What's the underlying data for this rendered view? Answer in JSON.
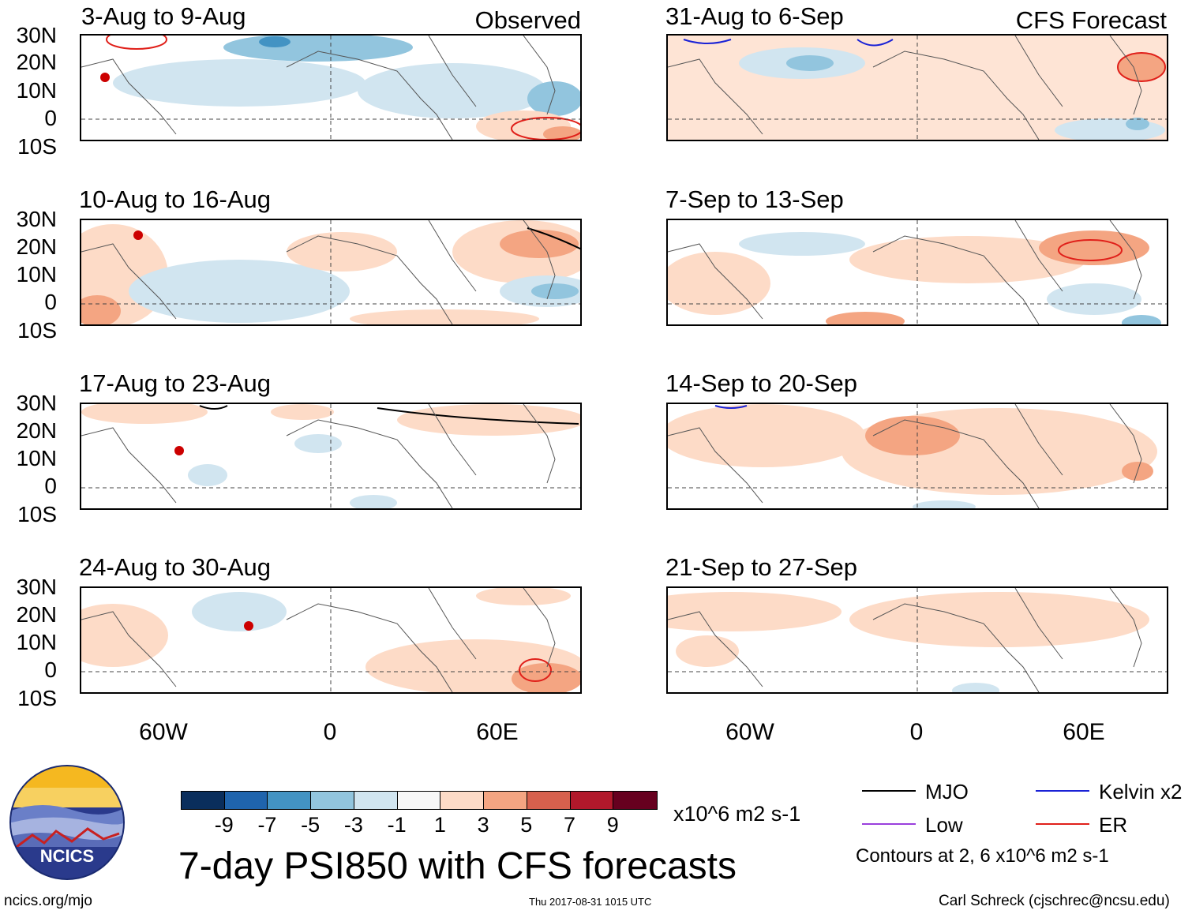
{
  "panels_left": [
    {
      "title": "3-Aug to 9-Aug",
      "tag": "Observed"
    },
    {
      "title": "10-Aug to 16-Aug",
      "tag": ""
    },
    {
      "title": "17-Aug to 23-Aug",
      "tag": ""
    },
    {
      "title": "24-Aug to 30-Aug",
      "tag": ""
    }
  ],
  "panels_right": [
    {
      "title": "31-Aug to 6-Sep",
      "tag": "CFS Forecast"
    },
    {
      "title": "7-Sep to 13-Sep",
      "tag": ""
    },
    {
      "title": "14-Sep to 20-Sep",
      "tag": ""
    },
    {
      "title": "21-Sep to 27-Sep",
      "tag": ""
    }
  ],
  "lat_labels": [
    "30N",
    "20N",
    "10N",
    "0",
    "10S"
  ],
  "lon_labels": [
    "60W",
    "0",
    "60E"
  ],
  "colorbar": {
    "colors": [
      "#0a2e5c",
      "#1f64ad",
      "#4393c3",
      "#92c5de",
      "#d1e5f0",
      "#f7f7f7",
      "#fddbc7",
      "#f4a582",
      "#d6604d",
      "#b2182b",
      "#67001f"
    ],
    "ticks": [
      "-9",
      "-7",
      "-5",
      "-3",
      "-1",
      "1",
      "3",
      "5",
      "7",
      "9"
    ],
    "units": "x10^6 m2 s-1"
  },
  "main_title": "7-day PSI850 with CFS forecasts",
  "legend": {
    "items": [
      {
        "label": "MJO",
        "color": "#000000"
      },
      {
        "label": "Kelvin x2",
        "color": "#1a22d6"
      },
      {
        "label": "Low",
        "color": "#9a3fdc"
      },
      {
        "label": "ER",
        "color": "#e0201a"
      }
    ],
    "note": "Contours at 2, 6 x10^6 m2 s-1"
  },
  "logo": {
    "text": "NCICS"
  },
  "footer": {
    "url": "ncics.org/mjo",
    "timestamp": "Thu 2017-08-31 1015 UTC",
    "credit": "Carl Schreck (cjschrec@ncsu.edu)"
  }
}
